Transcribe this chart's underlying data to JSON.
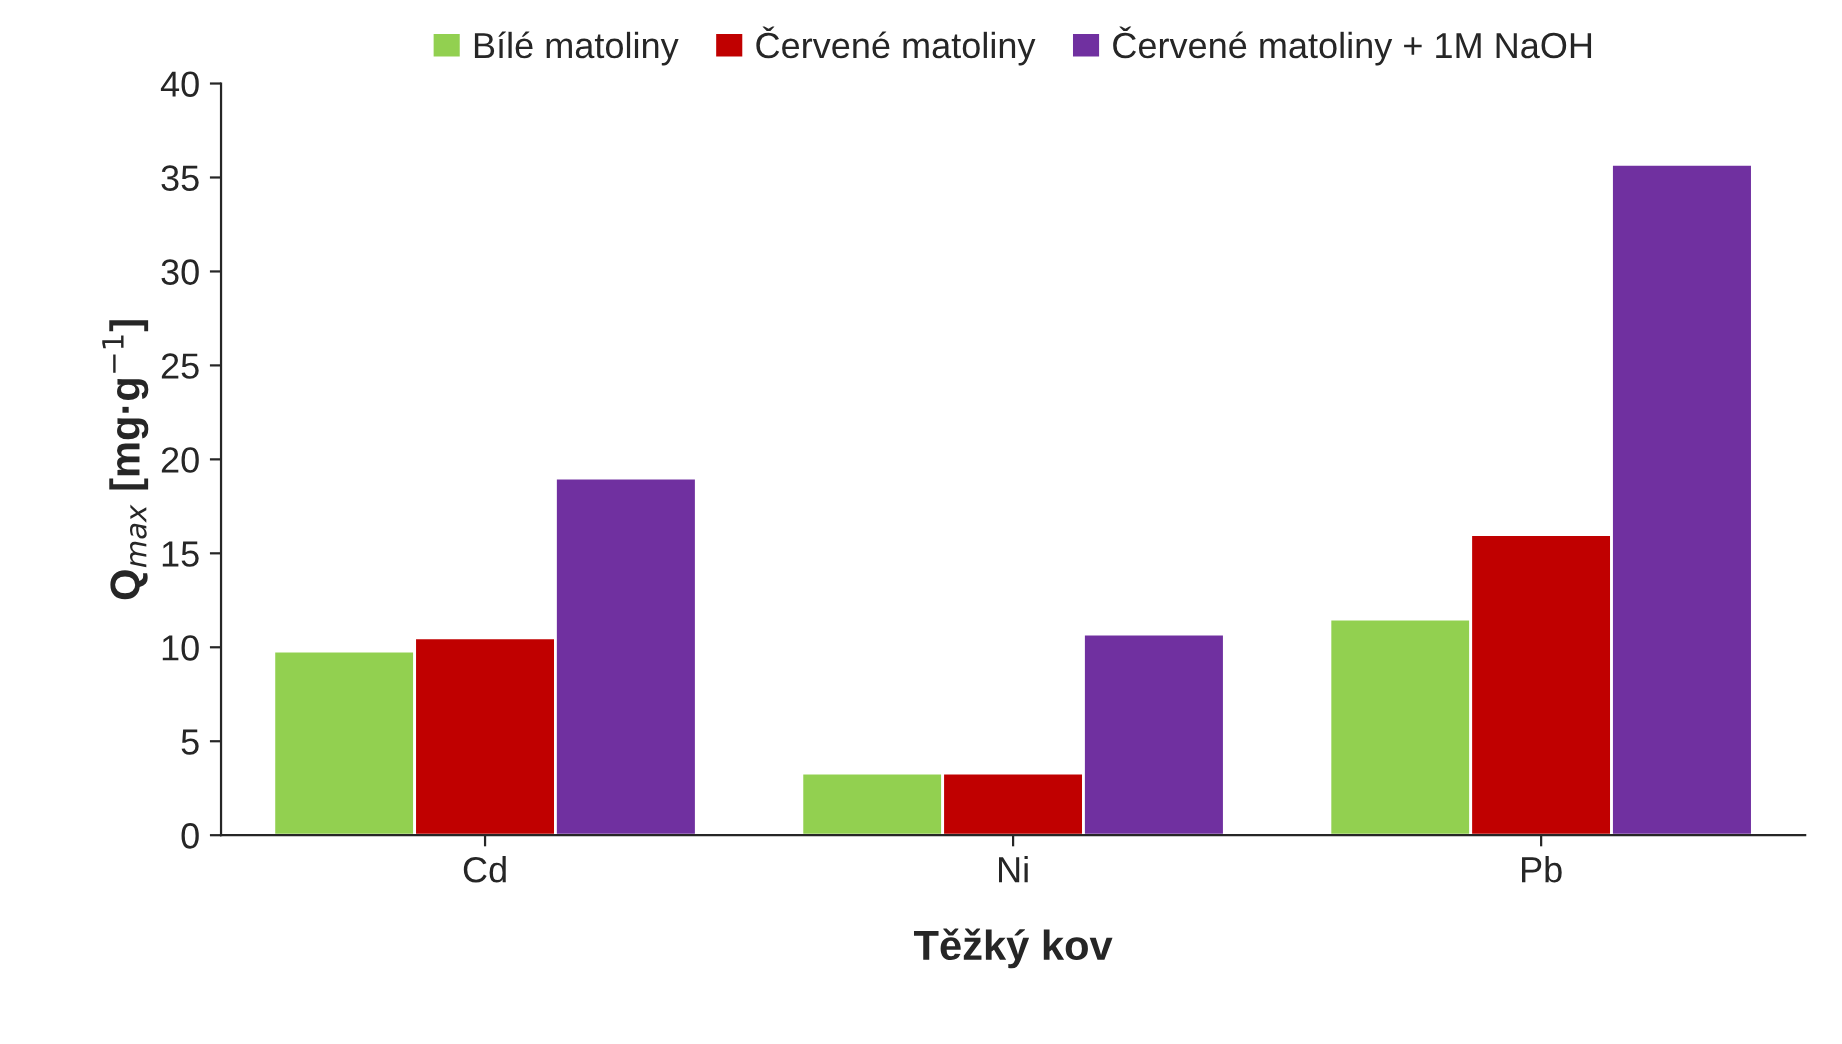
{
  "chart_data": {
    "type": "bar",
    "xlabel": "Těžký kov",
    "ylabel": "Q$_{max}$ [mg·g$^{−1}$]",
    "categories": [
      "Cd",
      "Ni",
      "Pb"
    ],
    "series": [
      {
        "name": "Bílé matoliny",
        "color": "#92d050",
        "values": [
          9.8,
          3.3,
          11.5
        ]
      },
      {
        "name": "Červené matoliny",
        "color": "#c00000",
        "values": [
          10.5,
          3.3,
          16
        ]
      },
      {
        "name": "Červené matoliny + 1M NaOH",
        "color": "#7030a0",
        "values": [
          19,
          10.7,
          35.7
        ]
      }
    ],
    "ylim": [
      0,
      40
    ],
    "yticks": [
      0,
      5,
      10,
      15,
      20,
      25,
      30,
      35,
      40
    ],
    "grid": false,
    "legend": "top"
  }
}
